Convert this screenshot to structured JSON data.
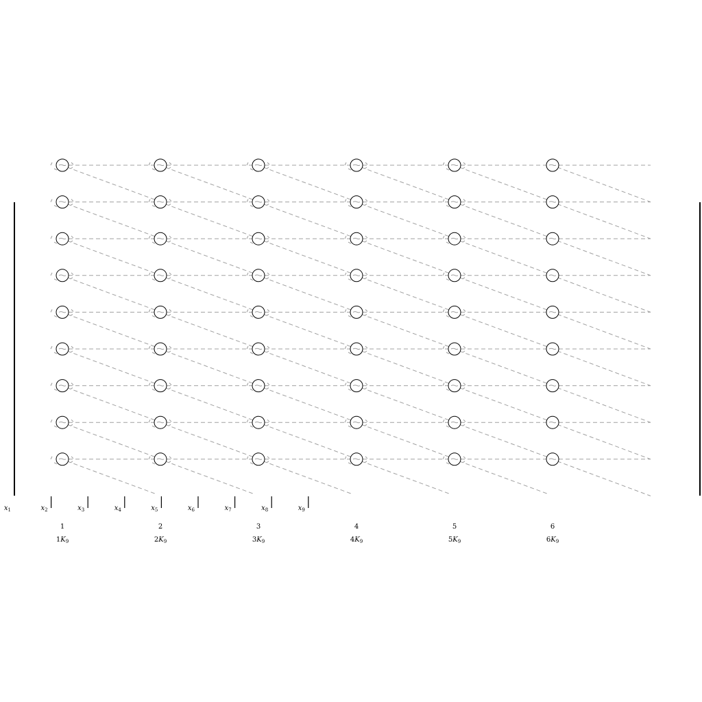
{
  "diagram": {
    "rows": 9,
    "columns": [
      {
        "index": "1",
        "label": "1K",
        "label_subscript": "9"
      },
      {
        "index": "2",
        "label": "2K",
        "label_subscript": "9"
      },
      {
        "index": "3",
        "label": "3K",
        "label_subscript": "9"
      },
      {
        "index": "4",
        "label": "4K",
        "label_subscript": "9"
      },
      {
        "index": "5",
        "label": "5K",
        "label_subscript": "9"
      },
      {
        "index": "6",
        "label": "6K",
        "label_subscript": "9"
      }
    ],
    "x_markers": [
      {
        "name": "x",
        "subscript": "1"
      },
      {
        "name": "x",
        "subscript": "2"
      },
      {
        "name": "x",
        "subscript": "3"
      },
      {
        "name": "x",
        "subscript": "4"
      },
      {
        "name": "x",
        "subscript": "5"
      },
      {
        "name": "x",
        "subscript": "6"
      },
      {
        "name": "x",
        "subscript": "7"
      },
      {
        "name": "x",
        "subscript": "8"
      },
      {
        "name": "x",
        "subscript": "9"
      }
    ],
    "colors": {
      "node_stroke": "#000000",
      "edge": "#a0a0a0",
      "node_tick": "#9a9a9a",
      "bar": "#000000"
    }
  }
}
